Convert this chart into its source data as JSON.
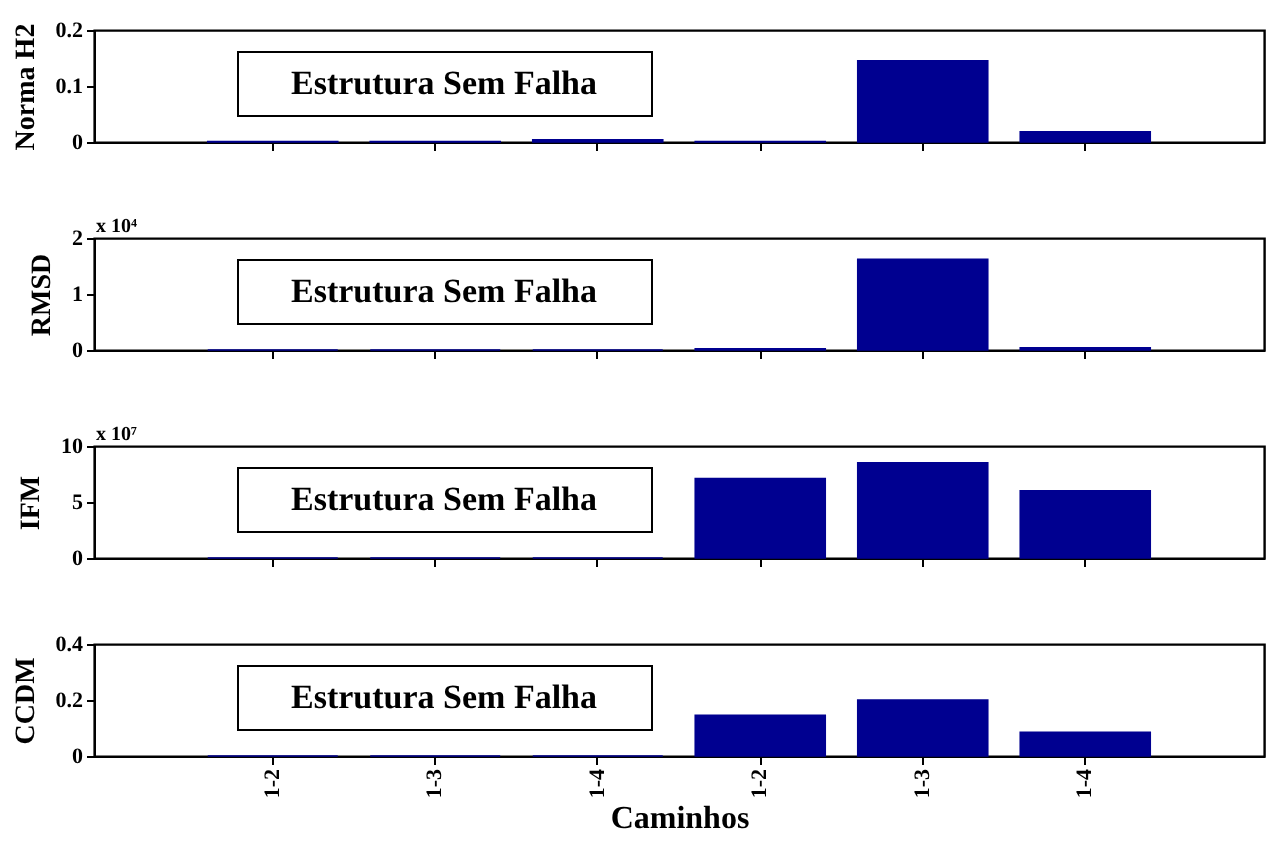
{
  "chart_data": [
    {
      "type": "bar",
      "ylabel": "Norma H2",
      "categories": [
        null,
        null,
        null,
        null,
        null,
        null
      ],
      "values": [
        0.001,
        0.001,
        0.004,
        0.001,
        0.145,
        0.018
      ],
      "color": "#000090",
      "ylim": [
        0,
        0.2
      ],
      "yticks": [
        0,
        0.1,
        0.2
      ],
      "grid": false,
      "tick_labels": "y",
      "annotations": [
        "Estrutura Sem Falha"
      ]
    },
    {
      "type": "bar",
      "ylabel": "RMSD",
      "categories": [
        null,
        null,
        null,
        null,
        null,
        null
      ],
      "values": [
        0,
        0,
        0,
        0.02,
        1.62,
        0.04
      ],
      "color": "#000090",
      "ylim": [
        0,
        2
      ],
      "yticks": [
        0,
        1,
        2
      ],
      "grid": false,
      "tick_labels": "y",
      "annotations": [
        "Estrutura Sem Falha",
        "x 10⁴"
      ]
    },
    {
      "type": "bar",
      "ylabel": "IFM",
      "categories": [
        null,
        null,
        null,
        null,
        null,
        null
      ],
      "values": [
        0,
        0,
        0,
        7.1,
        8.5,
        6.0
      ],
      "color": "#000090",
      "ylim": [
        0,
        10
      ],
      "yticks": [
        0,
        5,
        10
      ],
      "grid": false,
      "tick_labels": "y",
      "annotations": [
        "Estrutura Sem Falha",
        "x 10⁷"
      ]
    },
    {
      "type": "bar",
      "ylabel": "CCDM",
      "xlabel": "Caminhos",
      "categories": [
        "1-2",
        "1-3",
        "1-4",
        "1-2",
        "1-3",
        "1-4"
      ],
      "values": [
        0,
        0,
        0,
        0.145,
        0.2,
        0.085
      ],
      "color": "#000090",
      "ylim": [
        0,
        0.4
      ],
      "yticks": [
        0,
        0.2,
        0.4
      ],
      "grid": false,
      "annotations": [
        "Estrutura Sem Falha"
      ]
    }
  ]
}
